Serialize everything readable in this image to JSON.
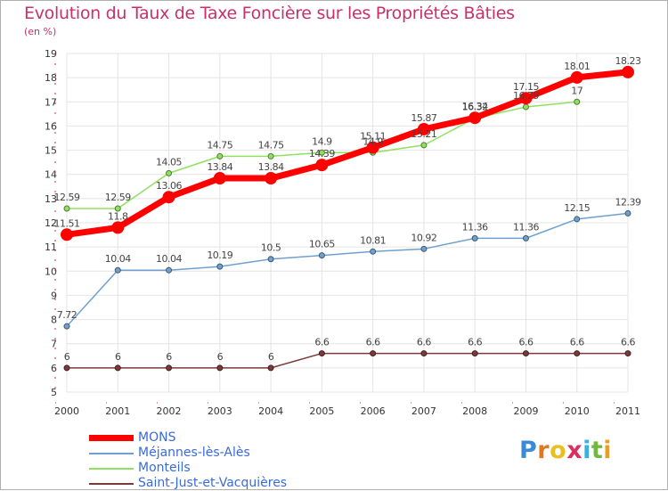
{
  "chart_data": {
    "type": "line",
    "title": "Evolution du Taux de Taxe Foncière sur les Propriétés Bâties",
    "ylabel": "(en %)",
    "xlabel": "",
    "ylim": [
      5,
      19
    ],
    "yticks": [
      "5",
      "6",
      "7",
      "8",
      "9",
      "10",
      "11",
      "12",
      "13",
      "14",
      "15",
      "16",
      "17",
      "18",
      "19"
    ],
    "x": [
      "2000",
      "2001",
      "2002",
      "2003",
      "2004",
      "2005",
      "2006",
      "2007",
      "2008",
      "2009",
      "2010",
      "2011"
    ],
    "grid": true,
    "series": [
      {
        "name": "MONS",
        "color": "#ff0000",
        "values": [
          11.51,
          11.8,
          13.06,
          13.84,
          13.84,
          14.39,
          15.11,
          15.87,
          16.34,
          17.15,
          18.01,
          18.23
        ],
        "labels": [
          "11.51",
          "11.8",
          "13.06",
          "13.84",
          "13.84",
          "14.39",
          "15.11",
          "15.87",
          "16.34",
          "17.15",
          "18.01",
          "18.23"
        ]
      },
      {
        "name": "Méjannes-lès-Alès",
        "color": "#6fa0d0",
        "values": [
          7.72,
          10.04,
          10.04,
          10.19,
          10.5,
          10.65,
          10.81,
          10.92,
          11.36,
          11.36,
          12.15,
          12.39
        ],
        "labels": [
          "7.72",
          "10.04",
          "10.04",
          "10.19",
          "10.5",
          "10.65",
          "10.81",
          "10.92",
          "11.36",
          "11.36",
          "12.15",
          "12.39"
        ]
      },
      {
        "name": "Monteils",
        "color": "#90e060",
        "values": [
          12.59,
          12.59,
          14.05,
          14.75,
          14.75,
          14.9,
          14.9,
          15.21,
          16.32,
          16.79,
          17,
          null
        ],
        "labels": [
          "12.59",
          "12.59",
          "14.05",
          "14.75",
          "14.75",
          "14.9",
          "14.9",
          "15.21",
          "16.32",
          "16.79",
          "17",
          ""
        ]
      },
      {
        "name": "Saint-Just-et-Vacquières",
        "color": "#7a3a3a",
        "values": [
          6,
          6,
          6,
          6,
          6,
          6.6,
          6.6,
          6.6,
          6.6,
          6.6,
          6.6,
          6.6
        ],
        "labels": [
          "6",
          "6",
          "6",
          "6",
          "6",
          "6.6",
          "6.6",
          "6.6",
          "6.6",
          "6.6",
          "6.6",
          "6.6"
        ]
      }
    ]
  },
  "logo": {
    "letters": [
      "P",
      "r",
      "o",
      "x",
      "i",
      "t",
      "i"
    ],
    "colors": [
      "#3a8ad8",
      "#e07820",
      "#e8c020",
      "#d83060",
      "#3ab0e0",
      "#70b840",
      "#e8a020"
    ]
  }
}
